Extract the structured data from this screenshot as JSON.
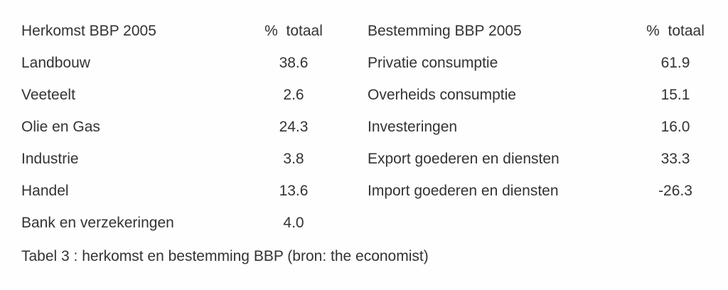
{
  "left_table": {
    "header": {
      "title": "Herkomst BBP 2005",
      "value": "%  totaal"
    },
    "rows": [
      {
        "label": "Landbouw",
        "value": "38.6"
      },
      {
        "label": "Veeteelt",
        "value": "2.6"
      },
      {
        "label": "Olie en Gas",
        "value": "24.3"
      },
      {
        "label": "Industrie",
        "value": "3.8"
      },
      {
        "label": "Handel",
        "value": "13.6"
      },
      {
        "label": "Bank en verzekeringen",
        "value": "4.0"
      }
    ]
  },
  "right_table": {
    "header": {
      "title": "Bestemming BBP 2005",
      "value": "%  totaal"
    },
    "rows": [
      {
        "label": "Privatie consumptie",
        "value": "61.9"
      },
      {
        "label": "Overheids consumptie",
        "value": "15.1"
      },
      {
        "label": "Investeringen",
        "value": "16.0"
      },
      {
        "label": "Export goederen en diensten",
        "value": "33.3"
      },
      {
        "label": "Import goederen en diensten",
        "value": "-26.3"
      }
    ]
  },
  "caption": "Tabel 3 : herkomst en bestemming BBP (bron: the economist)"
}
